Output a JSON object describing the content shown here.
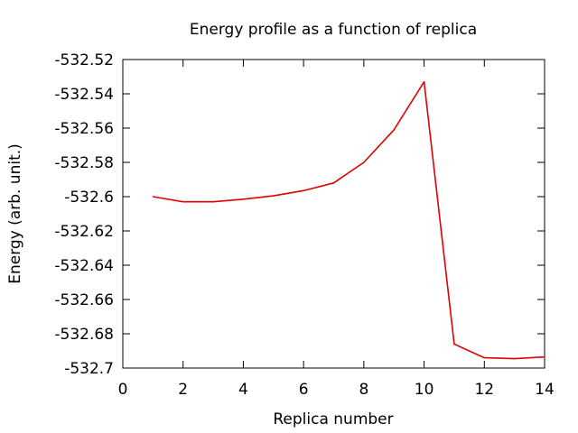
{
  "chart_data": {
    "type": "line",
    "title": "Energy profile as a function of replica",
    "xlabel": "Replica number",
    "ylabel": "Energy (arb. unit.)",
    "xlim": [
      0,
      14
    ],
    "ylim": [
      -532.7,
      -532.52
    ],
    "x_ticks": [
      "0",
      "2",
      "4",
      "6",
      "8",
      "10",
      "12",
      "14"
    ],
    "y_ticks": [
      "-532.52",
      "-532.54",
      "-532.56",
      "-532.58",
      "-532.6",
      "-532.62",
      "-532.64",
      "-532.66",
      "-532.68",
      "-532.7"
    ],
    "grid": false,
    "legend": "none",
    "series": [
      {
        "color": "#e00000",
        "x": [
          1,
          2,
          3,
          4,
          5,
          6,
          7,
          8,
          9,
          10,
          11,
          12,
          13,
          14
        ],
        "y": [
          -532.6,
          -532.603,
          -532.603,
          -532.6015,
          -532.5995,
          -532.5965,
          -532.592,
          -532.58,
          -532.561,
          -532.533,
          -532.686,
          -532.694,
          -532.6945,
          -532.6935
        ]
      }
    ]
  }
}
